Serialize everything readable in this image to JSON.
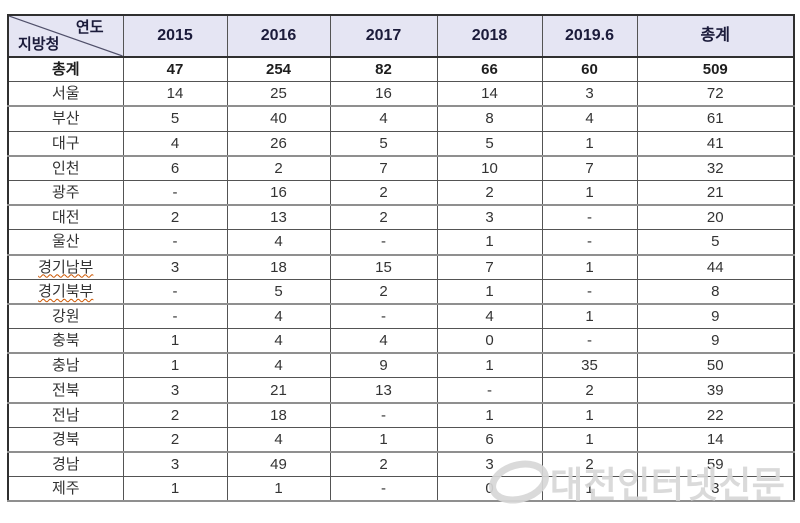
{
  "table": {
    "corner": {
      "year_label": "연도",
      "region_label": "지방청"
    },
    "columns": [
      "2015",
      "2016",
      "2017",
      "2018",
      "2019.6",
      "총계"
    ],
    "rows": [
      {
        "region": "총계",
        "values": [
          "47",
          "254",
          "82",
          "66",
          "60",
          "509"
        ],
        "total_row": true
      },
      {
        "region": "서울",
        "values": [
          "14",
          "25",
          "16",
          "14",
          "3",
          "72"
        ]
      },
      {
        "region": "부산",
        "values": [
          "5",
          "40",
          "4",
          "8",
          "4",
          "61"
        ]
      },
      {
        "region": "대구",
        "values": [
          "4",
          "26",
          "5",
          "5",
          "1",
          "41"
        ]
      },
      {
        "region": "인천",
        "values": [
          "6",
          "2",
          "7",
          "10",
          "7",
          "32"
        ]
      },
      {
        "region": "광주",
        "values": [
          "-",
          "16",
          "2",
          "2",
          "1",
          "21"
        ]
      },
      {
        "region": "대전",
        "values": [
          "2",
          "13",
          "2",
          "3",
          "-",
          "20"
        ]
      },
      {
        "region": "울산",
        "values": [
          "-",
          "4",
          "-",
          "1",
          "-",
          "5"
        ]
      },
      {
        "region": "경기남부",
        "values": [
          "3",
          "18",
          "15",
          "7",
          "1",
          "44"
        ],
        "misspelled": true
      },
      {
        "region": "경기북부",
        "values": [
          "-",
          "5",
          "2",
          "1",
          "-",
          "8"
        ],
        "misspelled": true
      },
      {
        "region": "강원",
        "values": [
          "-",
          "4",
          "-",
          "4",
          "1",
          "9"
        ]
      },
      {
        "region": "충북",
        "values": [
          "1",
          "4",
          "4",
          "0",
          "-",
          "9"
        ]
      },
      {
        "region": "충남",
        "values": [
          "1",
          "4",
          "9",
          "1",
          "35",
          "50"
        ]
      },
      {
        "region": "전북",
        "values": [
          "3",
          "21",
          "13",
          "-",
          "2",
          "39"
        ]
      },
      {
        "region": "전남",
        "values": [
          "2",
          "18",
          "-",
          "1",
          "1",
          "22"
        ]
      },
      {
        "region": "경북",
        "values": [
          "2",
          "4",
          "1",
          "6",
          "1",
          "14"
        ]
      },
      {
        "region": "경남",
        "values": [
          "3",
          "49",
          "2",
          "3",
          "2",
          "59"
        ]
      },
      {
        "region": "제주",
        "values": [
          "1",
          "1",
          "-",
          "0",
          "1",
          "3"
        ]
      }
    ]
  },
  "watermark": {
    "text": "대전인터넷신문",
    "logo": "swoosh-circle-logo"
  },
  "colors": {
    "header_bg": "#e5e5f3",
    "border_dark": "#2f2f2f",
    "border_alt": "#8f8f8f",
    "watermark": "#d7d7d7",
    "spellcheck_underline": "#cc5500"
  }
}
